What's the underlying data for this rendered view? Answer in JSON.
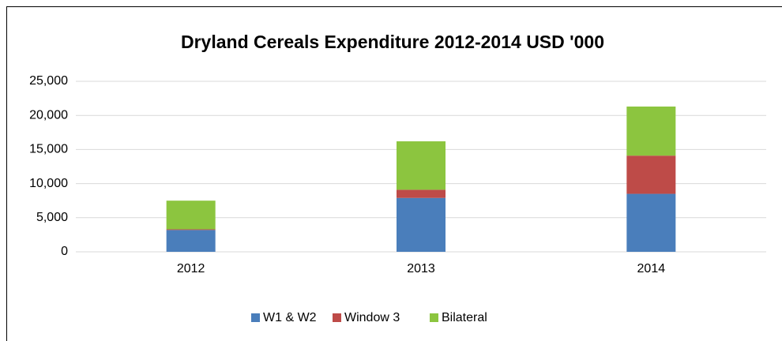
{
  "chart_data": {
    "type": "stacked_bar",
    "title": "Dryland Cereals Expenditure  2012-2014  USD '000",
    "categories": [
      "2012",
      "2013",
      "2014"
    ],
    "series": [
      {
        "name": "W1 & W2",
        "color": "#4a7ebb",
        "values": [
          3200,
          7900,
          8500
        ]
      },
      {
        "name": "Window 3",
        "color": "#be4b48",
        "values": [
          100,
          1200,
          5600
        ]
      },
      {
        "name": "Bilateral",
        "color": "#8cc53f",
        "values": [
          4200,
          7100,
          7200
        ]
      }
    ],
    "ylim": [
      0,
      25000
    ],
    "yticks": [
      0,
      {
        "value": 5000,
        "label": "5,000"
      },
      {
        "value": 10000,
        "label": "10,000"
      },
      {
        "value": 15000,
        "label": "15,000"
      },
      {
        "value": 20000,
        "label": "20,000"
      },
      {
        "value": 25000,
        "label": "25,000"
      }
    ],
    "grid": true,
    "legend": "bottom"
  }
}
